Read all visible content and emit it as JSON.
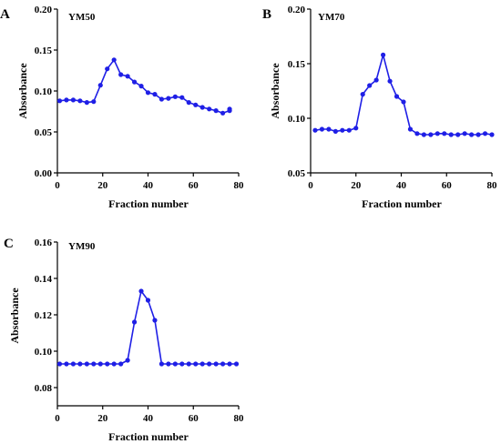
{
  "colors": {
    "series": "#1f1fe6",
    "axis": "#000000"
  },
  "chart_data": [
    {
      "type": "line",
      "panel_letter": "A",
      "title": "YM50",
      "xlabel": "Fraction number",
      "ylabel": "Absorbance",
      "xlim": [
        0,
        80
      ],
      "ylim": [
        0,
        0.2
      ],
      "xticks": [
        0,
        20,
        40,
        60,
        80
      ],
      "yticks": [
        0.0,
        0.05,
        0.1,
        0.15,
        0.2
      ],
      "xtick_labels": [
        "0",
        "20",
        "40",
        "60",
        "80"
      ],
      "ytick_labels": [
        "0.00",
        "0.05",
        "0.10",
        "0.15",
        "0.20"
      ],
      "grid": false,
      "x": [
        1,
        4,
        7,
        10,
        13,
        16,
        19,
        22,
        25,
        28,
        31,
        34,
        37,
        40,
        43,
        46,
        49,
        52,
        55,
        58,
        61,
        64,
        67,
        70,
        73,
        76,
        76
      ],
      "y": [
        0.088,
        0.089,
        0.089,
        0.088,
        0.086,
        0.087,
        0.107,
        0.127,
        0.138,
        0.12,
        0.118,
        0.111,
        0.106,
        0.098,
        0.096,
        0.09,
        0.091,
        0.093,
        0.092,
        0.086,
        0.083,
        0.08,
        0.078,
        0.076,
        0.073,
        0.076,
        0.078
      ]
    },
    {
      "type": "line",
      "panel_letter": "B",
      "title": "YM70",
      "xlabel": "Fraction number",
      "ylabel": "Absorbance",
      "xlim": [
        0,
        80
      ],
      "ylim": [
        0.05,
        0.2
      ],
      "xticks": [
        0,
        20,
        40,
        60,
        80
      ],
      "yticks": [
        0.05,
        0.1,
        0.15,
        0.2
      ],
      "xtick_labels": [
        "0",
        "20",
        "40",
        "60",
        "80"
      ],
      "ytick_labels": [
        "0.05",
        "0.10",
        "0.15",
        "0.20"
      ],
      "grid": false,
      "x": [
        2,
        5,
        8,
        11,
        14,
        17,
        20,
        23,
        26,
        29,
        32,
        35,
        38,
        41,
        44,
        47,
        50,
        53,
        56,
        59,
        62,
        65,
        68,
        71,
        74,
        77,
        80
      ],
      "y": [
        0.089,
        0.09,
        0.09,
        0.088,
        0.089,
        0.089,
        0.091,
        0.122,
        0.13,
        0.135,
        0.158,
        0.134,
        0.12,
        0.115,
        0.09,
        0.086,
        0.085,
        0.085,
        0.086,
        0.086,
        0.085,
        0.085,
        0.086,
        0.085,
        0.085,
        0.086,
        0.085
      ]
    },
    {
      "type": "line",
      "panel_letter": "C",
      "title": "YM90",
      "xlabel": "Fraction number",
      "ylabel": "Absorbance",
      "xlim": [
        0,
        80
      ],
      "ylim": [
        0.07,
        0.16
      ],
      "xticks": [
        0,
        20,
        40,
        60,
        80
      ],
      "yticks": [
        0.08,
        0.1,
        0.12,
        0.14,
        0.16
      ],
      "xtick_labels": [
        "0",
        "20",
        "40",
        "60",
        "80"
      ],
      "ytick_labels": [
        "0.08",
        "0.10",
        "0.12",
        "0.14",
        "0.16"
      ],
      "grid": false,
      "x": [
        1,
        4,
        7,
        10,
        13,
        16,
        19,
        22,
        25,
        28,
        31,
        34,
        37,
        40,
        43,
        46,
        49,
        52,
        55,
        58,
        61,
        64,
        67,
        70,
        73,
        76,
        79
      ],
      "y": [
        0.093,
        0.093,
        0.093,
        0.093,
        0.093,
        0.093,
        0.093,
        0.093,
        0.093,
        0.093,
        0.095,
        0.116,
        0.133,
        0.128,
        0.117,
        0.093,
        0.093,
        0.093,
        0.093,
        0.093,
        0.093,
        0.093,
        0.093,
        0.093,
        0.093,
        0.093,
        0.093
      ]
    }
  ]
}
